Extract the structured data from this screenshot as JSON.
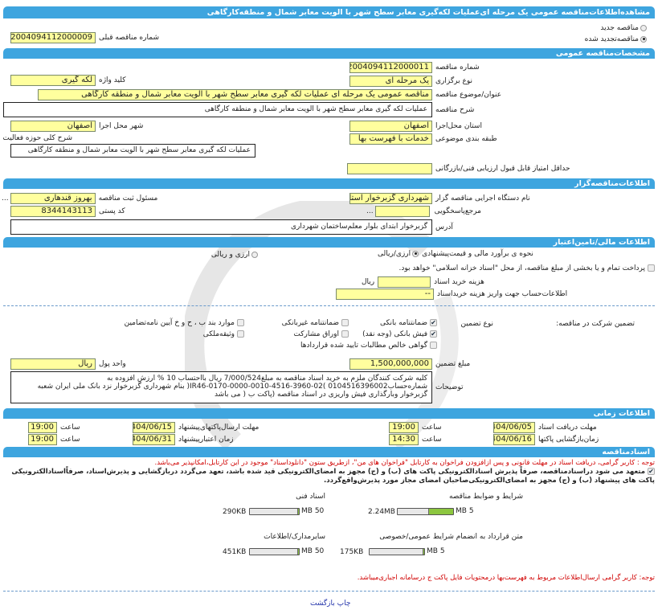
{
  "title": "مشاهده‌اطلاعات‌مناقصه عمومی یک مرحله ای‌عملیات لکه‌گیری معابر سطح شهر با الویت معابر شمال و منطقه‌کارگاهی",
  "tender_type": {
    "new_label": "مناقصه جدید",
    "renewed_label": "مناقصه‌تجدید شده",
    "selected": "renewed"
  },
  "previous_tender": {
    "label": "شماره مناقصه قبلی",
    "value": "2004094112000009"
  },
  "general": {
    "section": "مشخصات‌مناقصه عمومی",
    "number_label": "شماره مناقصه",
    "number": "2004094112000011",
    "holding_type_label": "نوع برگزاری",
    "holding_type": "یک مرحله ای",
    "keyword_label": "کلید واژه",
    "keyword": "لکه گیری",
    "subject_label": "عنوان/موضوع مناقصه",
    "subject": "مناقصه عمومی یک مرحله ای عملیات لکه گیری معابر سطح شهر با الویت معابر شمال و منطقه کارگاهی",
    "description_label": "شرح مناقصه",
    "description": "عملیات لکه گیری معابر سطح شهر با الویت معابر شمال و منطقه کارگاهی",
    "province_label": "استان محل‌اجرا",
    "province": "اصفهان",
    "city_label": "شهر محل اجرا",
    "city": "اصفهان",
    "category_label": "طبقه بندی موضوعی",
    "category": "خدمات با فهرست بها",
    "activity_label": "شرح کلی حوزه فعالیت",
    "activity": "عملیات لکه گیری معابر سطح شهر با الویت معابر شمال و منطقه کارگاهی",
    "min_score_label": "حداقل امتیاز قابل قبول ارزیابی فنی/بازرگانی",
    "min_score": ""
  },
  "organizer": {
    "section": "اطلاعات‌مناقصه‌گزار",
    "org_label": "نام دستگاه اجرایی مناقصه گزار",
    "org": "شهرداری گزبرخوار استان اصفهان",
    "registrar_label": "مسئول ثبت مناقصه",
    "registrar": "بهروز قندهاری",
    "reference_label": "مرجع‌پاسخگویی",
    "reference": "",
    "postal_label": "کد پستی",
    "postal": "8344143113",
    "address_label": "آدرس",
    "address": "گزبرخوار ابتدای بلوار معلم‌ساختمان شهرداری",
    "ellipsis": "..."
  },
  "finance": {
    "section": "اطلاعات مالی/تامین‌اعتبار",
    "estimate_label": "نحوه ی برآورد مالی و قیمت‌پیشنهادی",
    "opt_rial": "ارزی/ریالی",
    "opt_both": "ارزی و ریالی",
    "selected": "rial",
    "treasury_text": "پرداخت تمام و یا بخشی از مبلغ مناقصه، از محل \"اسناد خزانه اسلامی\" خواهد بود.",
    "treasury_checked": false,
    "doc_cost_label": "هزینه خرید اسناد",
    "doc_cost": "",
    "rial": "ریال",
    "account_label": "اطلاعات‌حساب جهت واریز هزینه خریداسناد",
    "account": "--",
    "guarantee_label": "تضمین شرکت در مناقصه:",
    "guarantee_type_label": "نوع تضمین",
    "guarantees": [
      {
        "label": "ضمانتنامه بانکی",
        "checked": true
      },
      {
        "label": "ضمانتنامه غیربانکی",
        "checked": false
      },
      {
        "label": "موارد بند ب ، ح و خ آیین نامه‌تضامین",
        "checked": false
      },
      {
        "label": "فیش بانکی (وجه نقد)",
        "checked": true
      },
      {
        "label": "اوراق مشارکت",
        "checked": false
      },
      {
        "label": "وثیقه‌ملکی",
        "checked": false
      },
      {
        "label": "گواهی خالص مطالبات تایید شده قراردادها",
        "checked": false
      }
    ],
    "amount_label": "مبلغ تضمین",
    "amount": "1,500,000,000",
    "currency_label": "واحد پول",
    "currency": "ریال",
    "notes_label": "توضیحات",
    "notes": "کلیه شرکت کنندگان ملزم به خرید اسناد مناقصه به مبلغ7/000/524 ریال بااحتساب 10 % ارزش افزوده به شماره‌حساب0104516396002 )IR46-0170-0000-0010-4516-3960-02( بنام شهرداری گزبرخوار نزد بانک ملی ایران شعبه گزبرخوار وبارگذاری فیش واریزی در اسناد مناقصه (پاکت ب ( می باشد"
  },
  "timing": {
    "section": "اطلاعات زمانی",
    "doc_deadline_label": "مهلت دریافت اسناد",
    "doc_deadline": "1404/06/05",
    "doc_time": "19:00",
    "open_label": "زمان‌بازگشایی پاکتها",
    "open_date": "1404/06/16",
    "open_time": "14:30",
    "submit_label": "مهلت ارسال‌پاکتهای‌پیشنهاد",
    "submit_date": "1404/06/15",
    "submit_time": "19:00",
    "validity_label": "زمان اعتبارپیشنهاد",
    "validity_date": "1404/06/31",
    "validity_time": "19:00",
    "time_label": "ساعت"
  },
  "documents": {
    "section": "اسنادمناقصه",
    "note1": "توجه : کاربر گرامی، دریافت اسناد در مهلت قانونی و پس ازافزودن فراخوان به کارتابل \"فراخوان های من\"، ازطریق ستون \"دانلوداسناد\" موجود در این کارتابل،امکانپذیر می‌باشد.",
    "commit_text": "متعهد می شود دراسنادمناقصه، صرفاً پذیرش اسنادالکترونیکی پاکت های (ب) و (ج) مجهز به امضای‌الکترونیکی قید شده باشد، تعهد می‌گردد دربازگشایی و پذیرش‌اسناد، صرفاًاسنادالکترونیکی پاکت های پیشنهاد (ب) و (ج) مجهز به امضای‌الکترونیکی‌صاحبان امضای مجاز مورد پذیرش‌واقع‌گردد.",
    "commit_checked": true,
    "files": [
      {
        "label": "شرایط و ضوابط مناقصه",
        "size": "2.24MB",
        "max": "5 MB",
        "fill": 0.448
      },
      {
        "label": "اسناد فنی",
        "size": "290KB",
        "max": "50 MB",
        "fill": 0.0057
      },
      {
        "label": "متن قرارداد به انضمام شرایط عمومی/خصوصی",
        "size": "175KB",
        "max": "5 MB",
        "fill": 0.034
      },
      {
        "label": "سایرمدارک/اطلاعات",
        "size": "451KB",
        "max": "50 MB",
        "fill": 0.009
      }
    ],
    "note2": "توجه: کاربر گرامی ارسال‌اطلاعات مربوط به فهرست‌بها درمحتویات فایل پاکت ج درسامانه اجباری‌میباشد."
  },
  "footer": {
    "print": "چاپ",
    "back": "بازگشت"
  },
  "colors": {
    "section_bar": "#3ea5df",
    "field_bg": "#ffff9e",
    "warning": "#d00000",
    "progress": "#8cc63f"
  }
}
